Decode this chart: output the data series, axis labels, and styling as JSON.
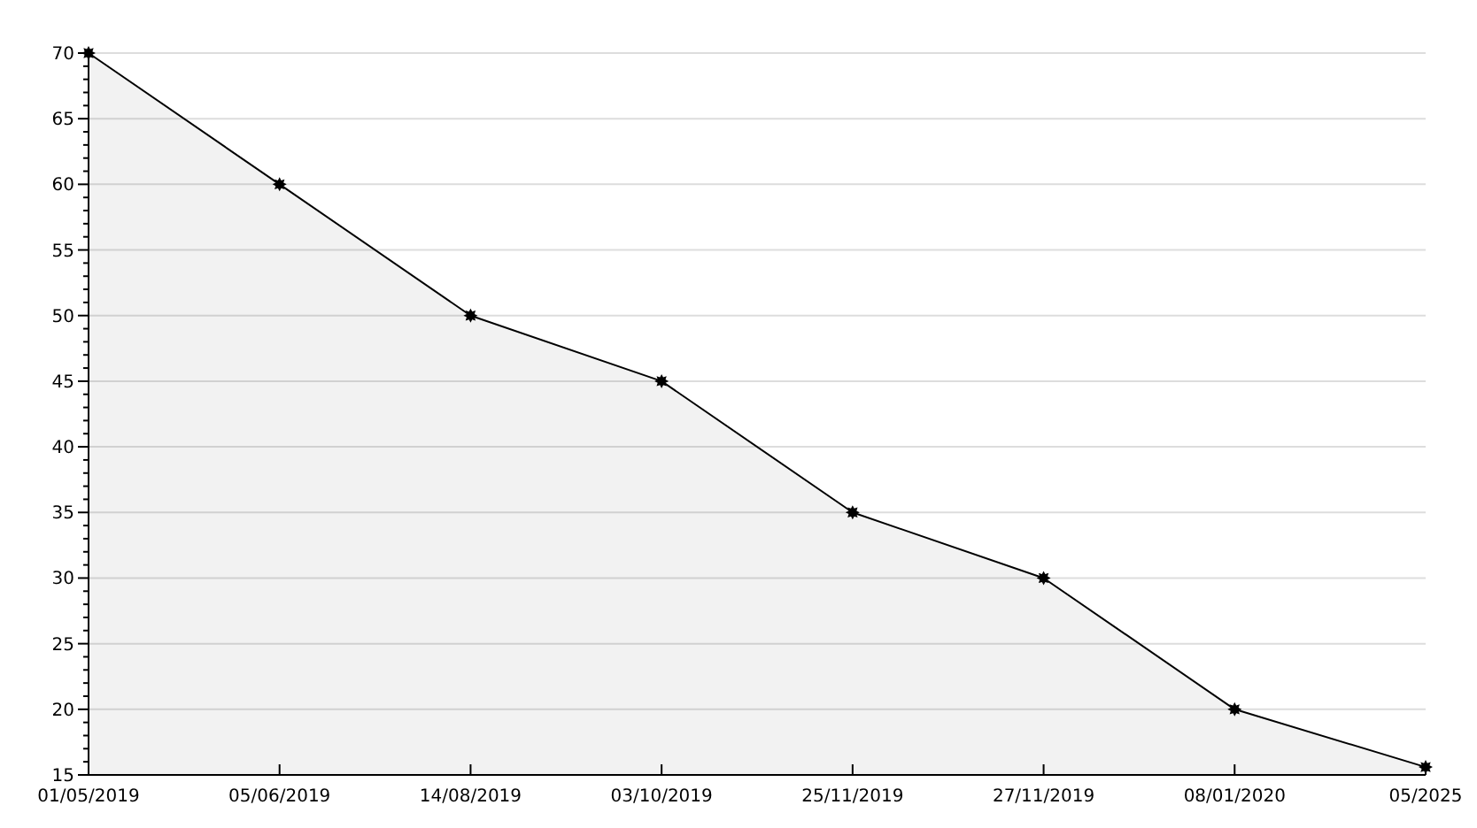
{
  "chart_data": {
    "type": "area",
    "categories": [
      "01/05/2019",
      "05/06/2019",
      "14/08/2019",
      "03/10/2019",
      "25/11/2019",
      "27/11/2019",
      "08/01/2020",
      "05/2025"
    ],
    "series": [
      {
        "color": "#000000",
        "values": [
          70,
          60,
          50,
          45,
          35,
          30,
          20,
          15.6
        ]
      }
    ],
    "ylim": [
      15,
      70
    ],
    "yticks": [
      15,
      {
        "value": 16,
        "label": null
      },
      {
        "value": 17,
        "label": null
      },
      {
        "value": 18,
        "label": null
      },
      {
        "value": 19,
        "label": null
      },
      20,
      {
        "value": 21,
        "label": null
      },
      {
        "value": 22,
        "label": null
      },
      {
        "value": 23,
        "label": null
      },
      {
        "value": 24,
        "label": null
      },
      25,
      {
        "value": 26,
        "label": null
      },
      {
        "value": 27,
        "label": null
      },
      {
        "value": 28,
        "label": null
      },
      {
        "value": 29,
        "label": null
      },
      30,
      {
        "value": 31,
        "label": null
      },
      {
        "value": 32,
        "label": null
      },
      {
        "value": 33,
        "label": null
      },
      {
        "value": 34,
        "label": null
      },
      35,
      {
        "value": 36,
        "label": null
      },
      {
        "value": 37,
        "label": null
      },
      {
        "value": 38,
        "label": null
      },
      {
        "value": 39,
        "label": null
      },
      40,
      {
        "value": 41,
        "label": null
      },
      {
        "value": 42,
        "label": null
      },
      {
        "value": 43,
        "label": null
      },
      {
        "value": 44,
        "label": null
      },
      45,
      {
        "value": 46,
        "label": null
      },
      {
        "value": 47,
        "label": null
      },
      {
        "value": 48,
        "label": null
      },
      {
        "value": 49,
        "label": null
      },
      50,
      {
        "value": 51,
        "label": null
      },
      {
        "value": 52,
        "label": null
      },
      {
        "value": 53,
        "label": null
      },
      {
        "value": 54,
        "label": null
      },
      55,
      {
        "value": 56,
        "label": null
      },
      {
        "value": 57,
        "label": null
      },
      {
        "value": 58,
        "label": null
      },
      {
        "value": 59,
        "label": null
      },
      60,
      {
        "value": 61,
        "label": null
      },
      {
        "value": 62,
        "label": null
      },
      {
        "value": 63,
        "label": null
      },
      {
        "value": 64,
        "label": null
      },
      65,
      {
        "value": 66,
        "label": null
      },
      {
        "value": 67,
        "label": null
      },
      {
        "value": 68,
        "label": null
      },
      {
        "value": 69,
        "label": null
      },
      70
    ],
    "grid": "y",
    "marker": "star",
    "line_style": "solid"
  }
}
